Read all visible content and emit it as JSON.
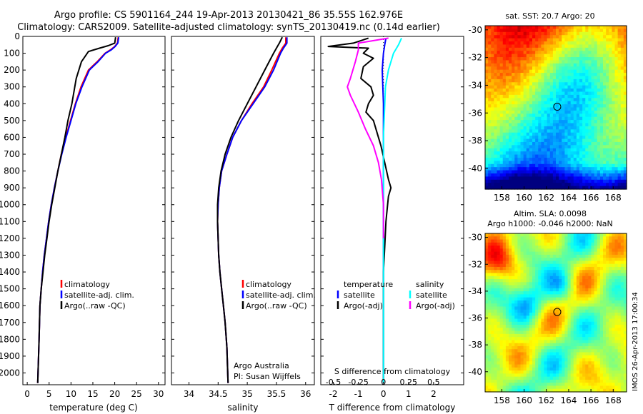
{
  "header": {
    "line1": "Argo profile: CS 5901164_244 19-Apr-2013 20130421_86 35.55S 162.976E",
    "line2": "Climatology: CARS2009. Satellite-adjusted climatology: synTS_20130419.nc (0.14d earlier)"
  },
  "colors": {
    "climatology": "#ff0000",
    "satellite": "#0000ff",
    "argo": "#000000",
    "sal_satellite": "#00ffff",
    "sal_argo": "#ff00ff"
  },
  "chart_data": [
    {
      "type": "line",
      "id": "temperature",
      "xlabel": "temperature (deg C)",
      "xlim": [
        -1,
        31.5
      ],
      "xticks": [
        0,
        5,
        10,
        15,
        20,
        25,
        30
      ],
      "xtick_labels": [
        "0",
        "5",
        "10",
        "15",
        "20",
        "25",
        "30"
      ],
      "ylim": [
        2070,
        0
      ],
      "yticks": [
        0,
        100,
        200,
        300,
        400,
        500,
        600,
        700,
        800,
        900,
        1000,
        1100,
        1200,
        1300,
        1400,
        1500,
        1600,
        1700,
        1800,
        1900,
        2000
      ],
      "ytick_labels": [
        "0",
        "100",
        "200",
        "300",
        "400",
        "500",
        "600",
        "700",
        "800",
        "900",
        "1000",
        "1100",
        "1200",
        "1300",
        "1400",
        "1500",
        "1600",
        "1700",
        "1800",
        "1900",
        "2000"
      ],
      "legend": [
        "climatology",
        "satellite-adj. clim.",
        "Argo(..raw -QC)"
      ],
      "series": [
        {
          "name": "climatology",
          "color": "#ff0000",
          "x": [
            20.8,
            20.6,
            20.0,
            19.0,
            17.8,
            16.0,
            14.0,
            12.3,
            11.0,
            9.9,
            8.8,
            7.8,
            7.0,
            6.2,
            5.5,
            4.9,
            4.4,
            3.9,
            3.5,
            3.2,
            2.9,
            2.7,
            2.4
          ],
          "y": [
            5,
            40,
            60,
            80,
            100,
            150,
            200,
            300,
            400,
            500,
            600,
            700,
            800,
            900,
            1000,
            1100,
            1200,
            1300,
            1400,
            1500,
            1600,
            1800,
            2060
          ]
        },
        {
          "name": "satellite-adj. clim.",
          "color": "#0000ff",
          "x": [
            20.9,
            20.7,
            20.1,
            19.2,
            17.9,
            16.2,
            14.2,
            12.5,
            11.1,
            10.0,
            8.9,
            7.9,
            7.0,
            6.2,
            5.5,
            4.9,
            4.4,
            3.9,
            3.5,
            3.2,
            2.9,
            2.7,
            2.4
          ],
          "y": [
            5,
            40,
            60,
            80,
            100,
            150,
            200,
            300,
            400,
            500,
            600,
            700,
            800,
            900,
            1000,
            1100,
            1200,
            1300,
            1400,
            1500,
            1600,
            1800,
            2060
          ]
        },
        {
          "name": "Argo(..raw -QC)",
          "color": "#000000",
          "x": [
            20.2,
            20.0,
            18.5,
            16.5,
            14.0,
            12.4,
            11.2,
            10.2,
            9.3,
            8.6,
            7.8,
            7.0,
            6.3,
            5.6,
            5.0,
            4.5,
            4.0,
            3.6,
            3.2,
            2.9,
            2.7,
            2.4
          ],
          "y": [
            5,
            40,
            55,
            70,
            90,
            150,
            250,
            400,
            500,
            600,
            700,
            800,
            900,
            1000,
            1100,
            1200,
            1300,
            1400,
            1500,
            1600,
            1800,
            2060
          ]
        }
      ]
    },
    {
      "type": "line",
      "id": "salinity",
      "xlabel": "salinity",
      "xlim": [
        33.7,
        36.15
      ],
      "xticks": [
        34,
        34.5,
        35,
        35.5,
        36
      ],
      "xtick_labels": [
        "34",
        "34.5",
        "35",
        "35.5",
        "36"
      ],
      "ylim": [
        2070,
        0
      ],
      "legend": [
        "climatology",
        "satellite-adj. clim.",
        "Argo(..raw -QC)"
      ],
      "annotation": [
        "Argo Australia",
        "PI: Susan Wijffels"
      ],
      "series": [
        {
          "name": "climatology",
          "color": "#ff0000",
          "x": [
            35.66,
            35.66,
            35.6,
            35.55,
            35.42,
            35.28,
            35.08,
            34.9,
            34.75,
            34.65,
            34.56,
            34.52,
            34.5,
            34.49,
            34.5,
            34.51,
            34.53,
            34.56,
            34.59,
            34.62,
            34.65,
            34.67
          ],
          "y": [
            5,
            40,
            70,
            100,
            200,
            300,
            400,
            500,
            600,
            700,
            800,
            900,
            1000,
            1100,
            1200,
            1300,
            1400,
            1500,
            1600,
            1700,
            1850,
            2060
          ]
        },
        {
          "name": "satellite-adj. clim.",
          "color": "#0000ff",
          "x": [
            35.68,
            35.68,
            35.62,
            35.57,
            35.45,
            35.3,
            35.1,
            34.9,
            34.75,
            34.65,
            34.56,
            34.52,
            34.5,
            34.49,
            34.5,
            34.51,
            34.53,
            34.56,
            34.59,
            34.62,
            34.65,
            34.67
          ],
          "y": [
            5,
            40,
            70,
            100,
            200,
            300,
            400,
            500,
            600,
            700,
            800,
            900,
            1000,
            1100,
            1200,
            1300,
            1400,
            1500,
            1600,
            1700,
            1850,
            2060
          ]
        },
        {
          "name": "Argo(..raw -QC)",
          "color": "#000000",
          "x": [
            35.6,
            35.55,
            35.5,
            35.45,
            35.3,
            35.15,
            35.0,
            34.85,
            34.72,
            34.62,
            34.55,
            34.51,
            34.49,
            34.49,
            34.5,
            34.51,
            34.53,
            34.56,
            34.59,
            34.62,
            34.65,
            34.67
          ],
          "y": [
            5,
            40,
            70,
            100,
            200,
            300,
            400,
            500,
            600,
            700,
            800,
            900,
            1000,
            1100,
            1200,
            1300,
            1400,
            1500,
            1600,
            1700,
            1850,
            2060
          ]
        }
      ]
    },
    {
      "type": "line",
      "id": "difference",
      "xlabel": "T difference from climatology",
      "xlim": [
        -2.5,
        3.2
      ],
      "xticks": [
        -2,
        -1,
        0,
        1,
        2
      ],
      "xtick_labels": [
        "-2",
        "-1",
        "0",
        "1",
        "2"
      ],
      "top_axis_label": "S difference from climatology",
      "top_ticks": [
        "-0.5",
        "-0.25",
        "0",
        "0.25",
        "0.5"
      ],
      "top_tick_values": [
        -0.5,
        -0.25,
        0,
        0.25,
        0.5
      ],
      "ylim": [
        2070,
        0
      ],
      "legend_temperature": [
        "temperature",
        "satellite",
        "Argo(-adj)"
      ],
      "legend_salinity": [
        "salinity",
        "satellite",
        "Argo(-adj)"
      ],
      "series": [
        {
          "name": "temperature satellite",
          "color": "#0000ff",
          "x": [
            0.1,
            0.05,
            0.0,
            -0.05,
            0.0,
            0.0,
            0.0,
            0.0,
            0.0,
            0.0,
            0.0
          ],
          "y": [
            10,
            50,
            100,
            200,
            400,
            600,
            900,
            1200,
            1500,
            1800,
            2060
          ]
        },
        {
          "name": "temperature Argo(-adj)",
          "color": "#000000",
          "x": [
            -0.6,
            -1.2,
            -2.2,
            -0.6,
            -0.8,
            -0.4,
            -0.8,
            -0.9,
            -0.5,
            -0.4,
            -0.6,
            -0.7,
            -0.4,
            -0.3,
            -0.1,
            0.05,
            0.2,
            0.3,
            0.2,
            0.1,
            0.05,
            0.0,
            0.0,
            0.0
          ],
          "y": [
            10,
            40,
            60,
            70,
            100,
            130,
            180,
            250,
            300,
            350,
            400,
            450,
            500,
            550,
            650,
            750,
            850,
            900,
            950,
            1100,
            1250,
            1400,
            1700,
            2060
          ]
        },
        {
          "name": "salinity satellite",
          "color": "#00ffff",
          "x": [
            0.18,
            0.15,
            0.1,
            0.05,
            0.02,
            0.01,
            0.0,
            0.0,
            0.0,
            0.0,
            0.0,
            0.0
          ],
          "y": [
            10,
            50,
            100,
            200,
            300,
            450,
            600,
            800,
            1100,
            1500,
            1800,
            2060
          ]
        },
        {
          "name": "salinity Argo(-adj)",
          "color": "#ff00ff",
          "x": [
            0.05,
            -0.25,
            -0.25,
            -0.28,
            -0.33,
            -0.36,
            -0.33,
            -0.25,
            -0.18,
            -0.1,
            -0.05,
            -0.02,
            0.0,
            0.0
          ],
          "y": [
            10,
            40,
            80,
            150,
            250,
            300,
            350,
            450,
            550,
            650,
            750,
            850,
            1000,
            1200
          ]
        }
      ]
    },
    {
      "type": "heatmap",
      "id": "sst_map",
      "title": "sat. SST: 20.7 Argo: 20",
      "xlim": [
        156.5,
        169.2
      ],
      "ylim": [
        -41.5,
        -29.7
      ],
      "xticks": [
        158,
        160,
        162,
        164,
        166,
        168
      ],
      "xtick_labels": [
        "158",
        "160",
        "162",
        "164",
        "166",
        "168"
      ],
      "yticks": [
        -30,
        -32,
        -34,
        -36,
        -38,
        -40
      ],
      "ytick_labels": [
        "-30",
        "-32",
        "-34",
        "-36",
        "-38",
        "-40"
      ],
      "marker": {
        "lon": 162.976,
        "lat": -35.55
      }
    },
    {
      "type": "heatmap",
      "id": "sla_map",
      "title_line1": "Altim. SLA: 0.0098",
      "title_line2": "Argo h1000: -0.046 h2000: NaN",
      "xlim": [
        156.5,
        169.2
      ],
      "ylim": [
        -41.5,
        -29.7
      ],
      "xticks": [
        158,
        160,
        162,
        164,
        166,
        168
      ],
      "xtick_labels": [
        "158",
        "160",
        "162",
        "164",
        "166",
        "168"
      ],
      "yticks": [
        -30,
        -32,
        -34,
        -36,
        -38,
        -40
      ],
      "ytick_labels": [
        "-30",
        "-32",
        "-34",
        "-36",
        "-38",
        "-40"
      ],
      "marker": {
        "lon": 162.976,
        "lat": -35.55
      }
    }
  ],
  "footer_stamp": "IMOS 26-Apr-2013 17:00:34"
}
